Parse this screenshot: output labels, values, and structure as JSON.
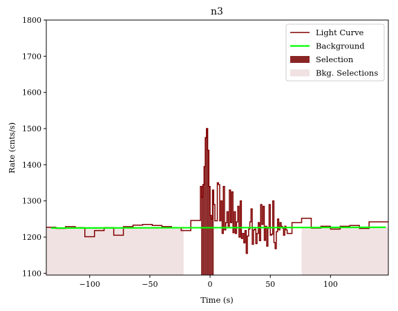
{
  "chart_data": {
    "type": "line",
    "title": "n3",
    "xlabel": "Time (s)",
    "ylabel": "Rate (cnts/s)",
    "xlim": [
      -136,
      148
    ],
    "ylim": [
      1095,
      1800
    ],
    "xticks": [
      -100,
      -50,
      0,
      50,
      100
    ],
    "xtick_labels": [
      "−100",
      "−50",
      "0",
      "50",
      "100"
    ],
    "yticks": [
      1100,
      1200,
      1300,
      1400,
      1500,
      1600,
      1700,
      1800
    ],
    "ytick_labels": [
      "1100",
      "1200",
      "1300",
      "1400",
      "1500",
      "1600",
      "1700",
      "1800"
    ],
    "grid": false,
    "legend_position": "top-right",
    "colors": {
      "light_curve": "#800000",
      "background": "#00ff00",
      "selection": "#8b2525",
      "bkg_selection": "#f0e2e2"
    },
    "legend": [
      {
        "label": "Light Curve",
        "kind": "line",
        "color": "#800000"
      },
      {
        "label": "Background",
        "kind": "line",
        "color": "#00ff00"
      },
      {
        "label": "Selection",
        "kind": "patch",
        "color": "#8b2525"
      },
      {
        "label": "Bkg. Selections",
        "kind": "patch",
        "color": "#f0e2e2"
      }
    ],
    "background": {
      "x": [
        -132,
        146
      ],
      "y": [
        1225,
        1227
      ]
    },
    "bkg_selections": [
      [
        -136,
        -22
      ],
      [
        76,
        148
      ]
    ],
    "selection": [
      -7.5,
      3
    ],
    "light_curve": {
      "x": [
        -136,
        -128,
        -120,
        -112,
        -104,
        -96,
        -88,
        -80,
        -72,
        -64,
        -56,
        -48,
        -40,
        -32,
        -24,
        -16,
        -8,
        -7,
        -6,
        -5,
        -4,
        -3,
        -2,
        -1,
        0,
        1,
        2,
        3,
        4,
        5,
        6,
        7,
        8,
        9,
        10,
        11,
        12,
        13,
        14,
        15,
        16,
        17,
        18,
        19,
        20,
        21,
        22,
        23,
        24,
        25,
        26,
        27,
        28,
        29,
        30,
        31,
        32,
        33,
        34,
        35,
        36,
        37,
        38,
        39,
        40,
        41,
        42,
        43,
        44,
        45,
        46,
        47,
        48,
        49,
        50,
        51,
        52,
        53,
        54,
        55,
        56,
        57,
        58,
        59,
        60,
        61,
        62,
        63,
        64,
        68,
        76,
        84,
        92,
        100,
        108,
        116,
        124,
        132,
        140
      ],
      "y": [
        1227,
        1224,
        1229,
        1226,
        1201,
        1218,
        1226,
        1205,
        1229,
        1233,
        1235,
        1232,
        1229,
        1226,
        1218,
        1246,
        1340,
        1310,
        1345,
        1395,
        1475,
        1500,
        1440,
        1340,
        1260,
        1250,
        1330,
        1290,
        1245,
        1245,
        1350,
        1345,
        1245,
        1300,
        1210,
        1340,
        1220,
        1240,
        1270,
        1230,
        1330,
        1240,
        1325,
        1212,
        1270,
        1210,
        1242,
        1285,
        1200,
        1300,
        1196,
        1210,
        1184,
        1218,
        1155,
        1203,
        1222,
        1242,
        1278,
        1180,
        1220,
        1222,
        1182,
        1210,
        1240,
        1190,
        1290,
        1235,
        1285,
        1191,
        1230,
        1175,
        1225,
        1290,
        1205,
        1208,
        1300,
        1185,
        1168,
        1215,
        1250,
        1220,
        1240,
        1230,
        1225,
        1205,
        1230,
        1220,
        1210,
        1240,
        1252,
        1225,
        1230,
        1222,
        1230,
        1232,
        1224,
        1242,
        1242
      ],
      "end_x": 148
    }
  }
}
